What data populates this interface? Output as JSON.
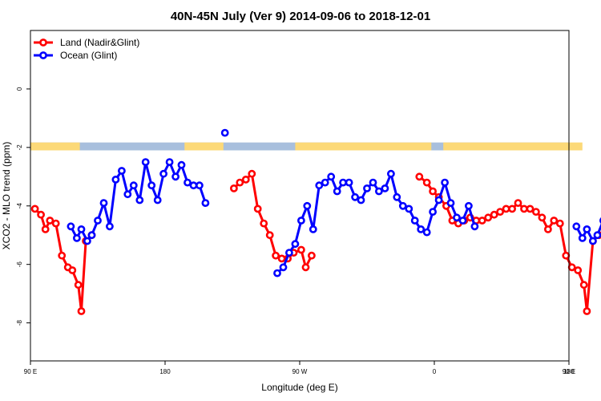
{
  "chart_data": {
    "type": "line",
    "title": "40N-45N July (Ver 9)   2014-09-06 to 2018-12-01",
    "xlabel": "Longitude (deg E)",
    "ylabel": "XCO2 - MLO trend (ppm)",
    "x_axis": {
      "min_deg_east": 90,
      "max_deg_east": 450
    },
    "ylim": [
      -9.3,
      2.0
    ],
    "x_ticks": [
      {
        "x": 90,
        "label": "90 E"
      },
      {
        "x": 180,
        "label": "180"
      },
      {
        "x": 270,
        "label": "90 W"
      },
      {
        "x": 360,
        "label": "0"
      },
      {
        "x": 450,
        "label": "90 E"
      },
      {
        "x": 540,
        "label": "180"
      }
    ],
    "y_ticks": [
      {
        "y": 0,
        "label": "0"
      },
      {
        "y": -2,
        "label": "-2"
      },
      {
        "y": -4,
        "label": "-4"
      },
      {
        "y": -6,
        "label": "-6"
      },
      {
        "y": -8,
        "label": "-8"
      }
    ],
    "grid": false,
    "legend_position": "top-left",
    "land_ocean_strip": {
      "y_top": -1.83,
      "y_bottom": -2.1,
      "land_color": "#fcd978",
      "ocean_color": "#a8bfdd",
      "land_ranges": [
        [
          90,
          123
        ],
        [
          193,
          219
        ],
        [
          267,
          358
        ],
        [
          366,
          459
        ],
        [
          524,
          540
        ]
      ]
    },
    "series": [
      {
        "name": "Land (Nadir&Glint)",
        "color": "#ff0000",
        "segments": [
          [
            [
              93,
              -4.1
            ],
            [
              97,
              -4.3
            ],
            [
              100,
              -4.8
            ],
            [
              103,
              -4.5
            ],
            [
              107,
              -4.6
            ],
            [
              111,
              -5.7
            ],
            [
              115,
              -6.1
            ],
            [
              118,
              -6.2
            ],
            [
              122,
              -6.7
            ],
            [
              124,
              -7.6
            ],
            [
              127,
              -5.2
            ],
            [
              131,
              -5.0
            ]
          ],
          [
            [
              226,
              -3.4
            ],
            [
              230,
              -3.2
            ],
            [
              234,
              -3.1
            ],
            [
              238,
              -2.9
            ],
            [
              242,
              -4.1
            ],
            [
              246,
              -4.6
            ],
            [
              250,
              -5.0
            ],
            [
              254,
              -5.7
            ],
            [
              258,
              -5.8
            ],
            [
              262,
              -5.8
            ],
            [
              266,
              -5.6
            ],
            [
              271,
              -5.5
            ],
            [
              274,
              -6.1
            ],
            [
              278,
              -5.7
            ]
          ],
          [
            [
              350,
              -3.0
            ],
            [
              355,
              -3.2
            ],
            [
              359,
              -3.5
            ],
            [
              363,
              -3.7
            ],
            [
              368,
              -4.0
            ],
            [
              372,
              -4.5
            ],
            [
              376,
              -4.6
            ],
            [
              380,
              -4.5
            ],
            [
              384,
              -4.4
            ],
            [
              388,
              -4.5
            ],
            [
              392,
              -4.5
            ],
            [
              396,
              -4.4
            ],
            [
              400,
              -4.3
            ],
            [
              404,
              -4.2
            ],
            [
              408,
              -4.1
            ],
            [
              412,
              -4.1
            ],
            [
              416,
              -3.9
            ],
            [
              420,
              -4.1
            ],
            [
              424,
              -4.1
            ],
            [
              428,
              -4.2
            ],
            [
              432,
              -4.4
            ],
            [
              436,
              -4.8
            ],
            [
              440,
              -4.5
            ],
            [
              444,
              -4.6
            ],
            [
              448,
              -5.7
            ],
            [
              452,
              -6.1
            ],
            [
              456,
              -6.2
            ],
            [
              460,
              -6.7
            ],
            [
              462,
              -7.6
            ],
            [
              466,
              -5.2
            ],
            [
              470,
              -5.0
            ]
          ]
        ]
      },
      {
        "name": "Ocean (Glint)",
        "color": "#0000ff",
        "segments": [
          [
            [
              117,
              -4.7
            ],
            [
              121,
              -5.1
            ],
            [
              124,
              -4.8
            ],
            [
              128,
              -5.2
            ],
            [
              131,
              -5.0
            ],
            [
              135,
              -4.5
            ],
            [
              139,
              -3.9
            ],
            [
              143,
              -4.7
            ],
            [
              147,
              -3.1
            ],
            [
              151,
              -2.8
            ],
            [
              155,
              -3.6
            ],
            [
              159,
              -3.3
            ],
            [
              163,
              -3.8
            ],
            [
              167,
              -2.5
            ],
            [
              171,
              -3.3
            ],
            [
              175,
              -3.8
            ],
            [
              179,
              -2.9
            ],
            [
              183,
              -2.5
            ],
            [
              187,
              -3.0
            ],
            [
              191,
              -2.6
            ],
            [
              195,
              -3.2
            ],
            [
              199,
              -3.3
            ],
            [
              203,
              -3.3
            ],
            [
              207,
              -3.9
            ]
          ],
          [
            [
              220,
              -1.5
            ]
          ],
          [
            [
              255,
              -6.3
            ],
            [
              259,
              -6.1
            ],
            [
              263,
              -5.6
            ],
            [
              267,
              -5.3
            ],
            [
              271,
              -4.5
            ],
            [
              275,
              -4.0
            ],
            [
              279,
              -4.8
            ],
            [
              283,
              -3.3
            ],
            [
              287,
              -3.2
            ],
            [
              291,
              -3.0
            ],
            [
              295,
              -3.5
            ],
            [
              299,
              -3.2
            ],
            [
              303,
              -3.2
            ],
            [
              307,
              -3.7
            ],
            [
              311,
              -3.8
            ],
            [
              315,
              -3.4
            ],
            [
              319,
              -3.2
            ],
            [
              323,
              -3.5
            ],
            [
              327,
              -3.4
            ],
            [
              331,
              -2.9
            ],
            [
              335,
              -3.7
            ],
            [
              339,
              -4.0
            ],
            [
              343,
              -4.1
            ],
            [
              347,
              -4.5
            ],
            [
              351,
              -4.8
            ],
            [
              355,
              -4.9
            ],
            [
              359,
              -4.2
            ],
            [
              363,
              -3.8
            ],
            [
              367,
              -3.2
            ],
            [
              371,
              -3.9
            ],
            [
              375,
              -4.4
            ],
            [
              379,
              -4.5
            ],
            [
              383,
              -4.0
            ],
            [
              387,
              -4.7
            ]
          ],
          [
            [
              455,
              -4.7
            ],
            [
              459,
              -5.1
            ],
            [
              462,
              -4.8
            ],
            [
              466,
              -5.2
            ],
            [
              469,
              -5.0
            ],
            [
              473,
              -4.5
            ],
            [
              477,
              -3.9
            ],
            [
              481,
              -4.7
            ],
            [
              485,
              -3.1
            ],
            [
              489,
              -2.8
            ],
            [
              493,
              -3.6
            ],
            [
              497,
              -3.3
            ]
          ]
        ]
      }
    ]
  }
}
